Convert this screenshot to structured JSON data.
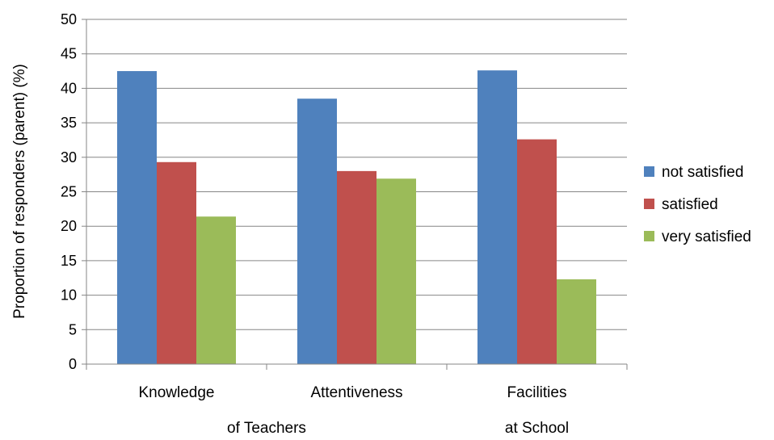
{
  "chart_data": {
    "type": "bar",
    "title": "",
    "xlabel": "",
    "ylabel": "Proportion of responders (parent) (%)",
    "ylim": [
      0,
      50
    ],
    "yticks": [
      0,
      5,
      10,
      15,
      20,
      25,
      30,
      35,
      40,
      45,
      50
    ],
    "categories": [
      "Knowledge",
      "Attentiveness",
      "Facilities"
    ],
    "group_sublabels": [
      {
        "text": "of Teachers",
        "spans": [
          "Knowledge",
          "Attentiveness"
        ]
      },
      {
        "text": "at School",
        "spans": [
          "Facilities"
        ]
      }
    ],
    "series": [
      {
        "name": "not satisfied",
        "color": "#4f81bd",
        "values": [
          42.5,
          38.5,
          42.6
        ]
      },
      {
        "name": "satisfied",
        "color": "#c0504d",
        "values": [
          29.3,
          28.0,
          32.6
        ]
      },
      {
        "name": "very satisfied",
        "color": "#9bbb59",
        "values": [
          21.4,
          26.9,
          12.3
        ]
      }
    ],
    "grid": true,
    "legend": "right"
  }
}
